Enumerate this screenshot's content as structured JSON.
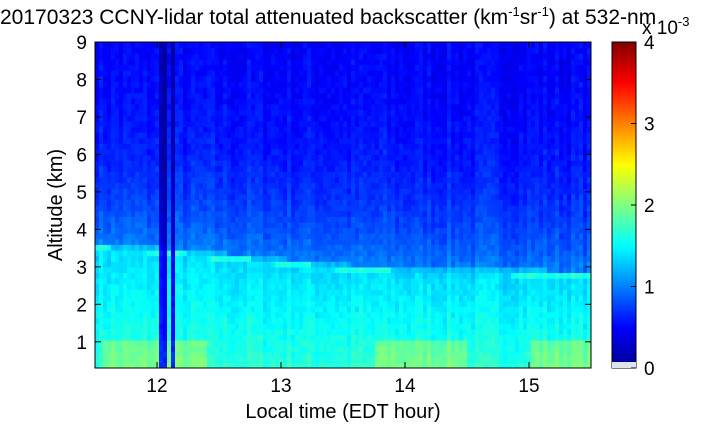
{
  "chart_data": {
    "type": "heatmap",
    "title": {
      "prefix": "20170323 CCNY-lidar total attenuated backscatter (km",
      "sup1": "-1",
      "mid": "sr",
      "sup2": "-1",
      "suffix": ") at 532-nm"
    },
    "xlabel": "Local time (EDT hour)",
    "ylabel": "Altitude (km)",
    "xlim": [
      11.5,
      15.5
    ],
    "ylim": [
      0.3,
      9.0
    ],
    "x_ticks": [
      12,
      13,
      14,
      15
    ],
    "y_ticks": [
      1,
      2,
      3,
      4,
      5,
      6,
      7,
      8,
      9
    ],
    "colorbar": {
      "colormap": "jet",
      "range": [
        0,
        4
      ],
      "ticks": [
        0,
        1,
        2,
        3,
        4
      ],
      "exponent_label": {
        "base": "x 10",
        "exp": "-3"
      }
    },
    "features": {
      "aerosol_layer_top_km": {
        "x": [
          11.5,
          12.0,
          12.5,
          13.0,
          13.5,
          14.0,
          14.5,
          15.0,
          15.5
        ],
        "y": [
          3.55,
          3.45,
          3.3,
          3.15,
          3.0,
          2.9,
          2.9,
          2.85,
          2.8
        ]
      },
      "dark_columns_hour": [
        12.05,
        12.14
      ]
    }
  }
}
